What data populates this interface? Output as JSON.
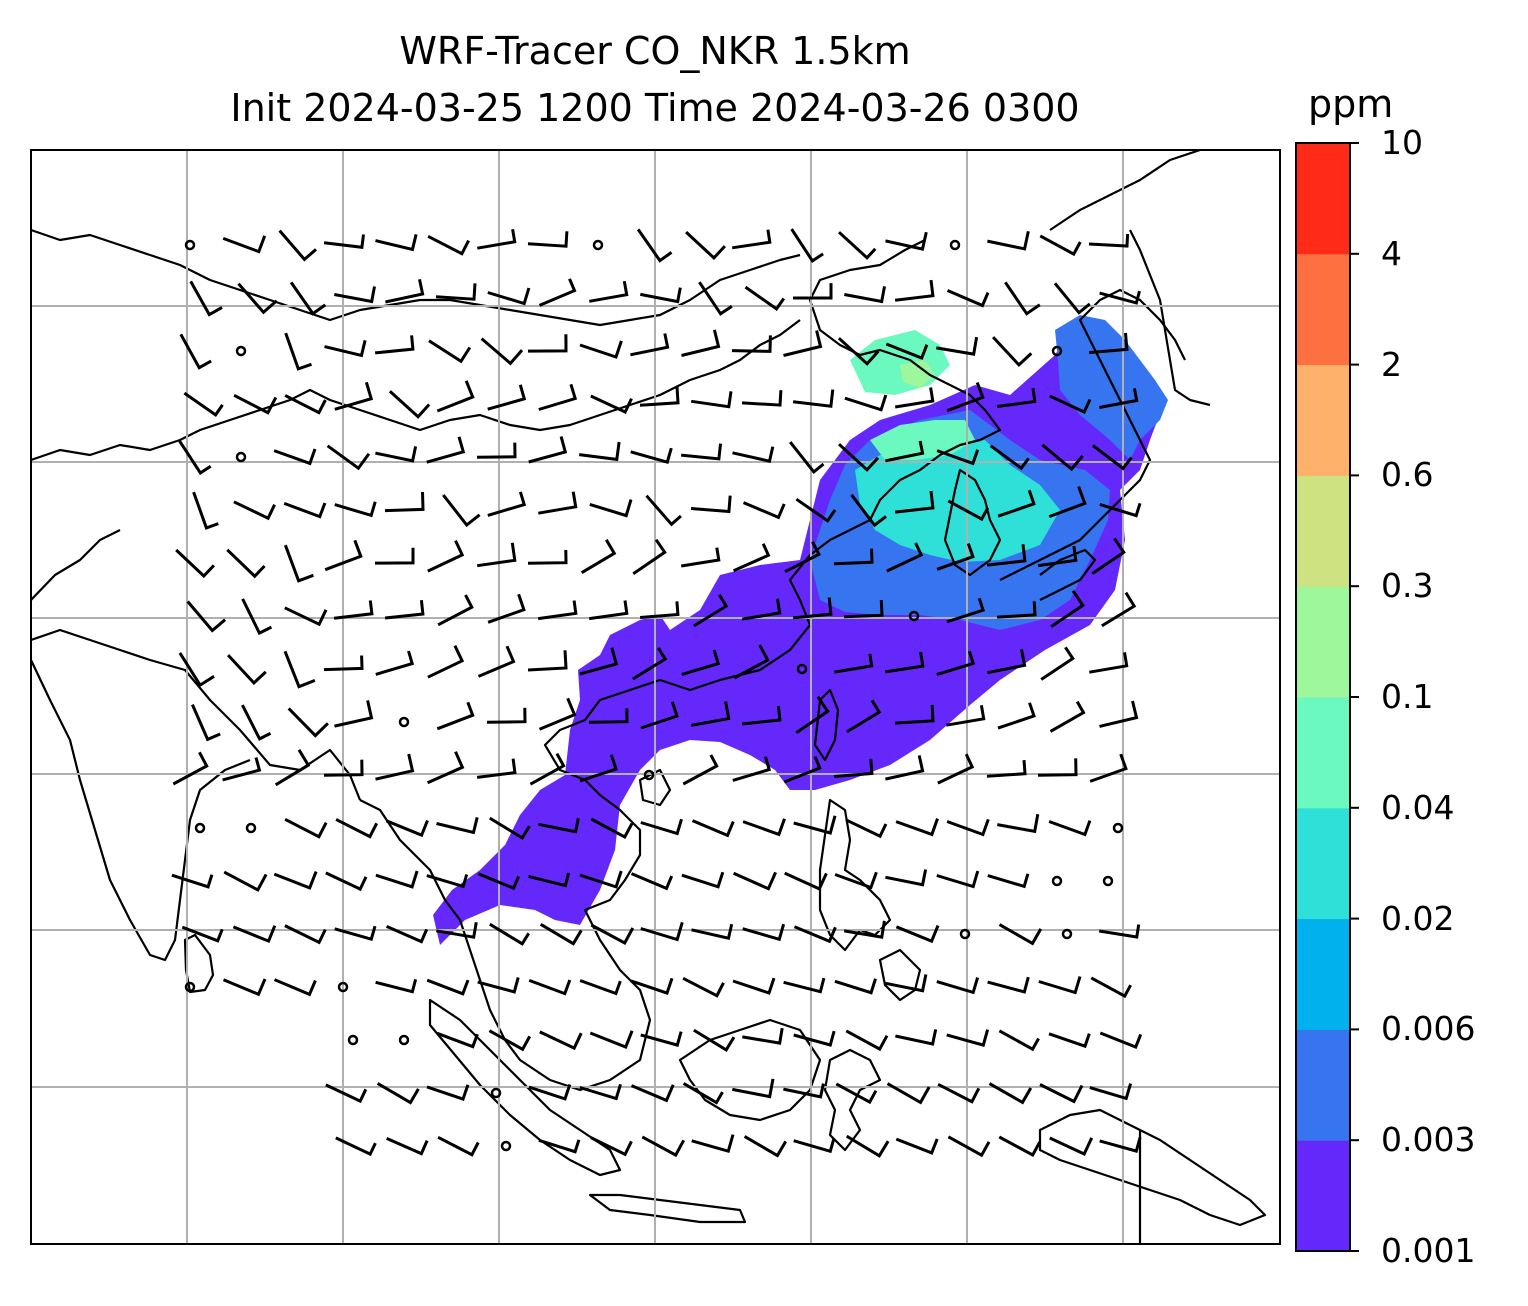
{
  "title": {
    "line1": "WRF-Tracer CO_NKR 1.5km",
    "line2": "Init 2024-03-25 1200 Time 2024-03-26 0300"
  },
  "colorbar": {
    "unit": "ppm",
    "levels": [
      "0.001",
      "0.003",
      "0.006",
      "0.02",
      "0.04",
      "0.1",
      "0.3",
      "0.6",
      "2",
      "4",
      "10"
    ],
    "colors": [
      "#6528fb",
      "#3674f0",
      "#00b1ee",
      "#2fe0d8",
      "#6cf9bf",
      "#9ef79a",
      "#cfe282",
      "#feb16a",
      "#ff7040",
      "#ff2b18"
    ]
  },
  "map": {
    "background": "#ffffff",
    "gridline_color": "#b0b0b0",
    "coastline_color": "#000000",
    "barb_color": "#000000"
  }
}
